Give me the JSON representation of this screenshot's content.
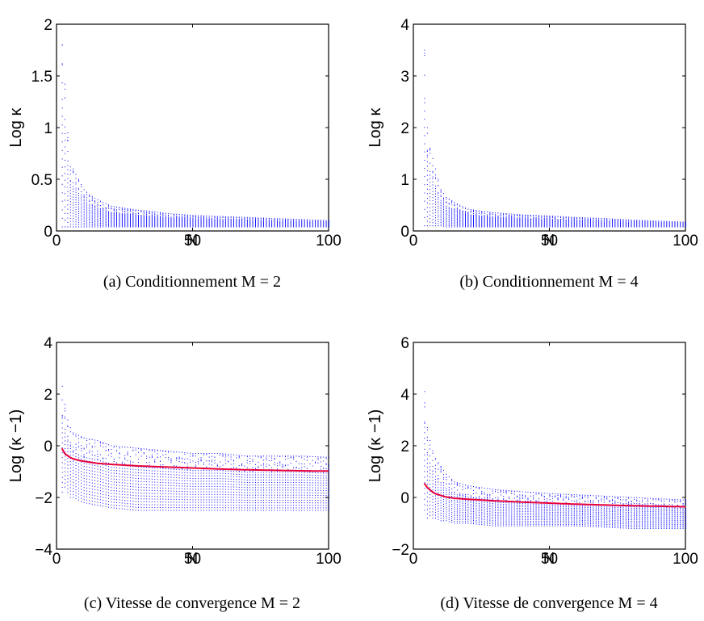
{
  "figure": {
    "panels": [
      {
        "caption": "(a)  Conditionnement M = 2",
        "chart_data": {
          "type": "scatter",
          "xlabel": "N",
          "ylabel": "Log κ",
          "xlim": [
            0,
            100
          ],
          "ylim": [
            0,
            2
          ],
          "xticks": [
            0,
            50,
            100
          ],
          "yticks": [
            0,
            0.5,
            1,
            1.5,
            2
          ],
          "xtick_labels": [
            "0",
            "50",
            "100"
          ],
          "ytick_labels": [
            "0",
            "0.5",
            "1",
            "1.5",
            "2"
          ],
          "grid": false,
          "points_color": "#0000ff",
          "series": [
            {
              "x": [
                2,
                3,
                4,
                5,
                6,
                7,
                8,
                10,
                12,
                15,
                20,
                25,
                30,
                35,
                40,
                50,
                60,
                70,
                80,
                90,
                100
              ],
              "min": [
                0.04,
                0.04,
                0.04,
                0.04,
                0.04,
                0.04,
                0.04,
                0.04,
                0.04,
                0.04,
                0.04,
                0.04,
                0.04,
                0.04,
                0.04,
                0.04,
                0.04,
                0.04,
                0.04,
                0.04,
                0.04
              ],
              "max": [
                1.8,
                1.42,
                0.95,
                0.62,
                0.6,
                0.55,
                0.5,
                0.4,
                0.35,
                0.3,
                0.24,
                0.22,
                0.2,
                0.19,
                0.17,
                0.15,
                0.14,
                0.13,
                0.12,
                0.11,
                0.1
              ]
            }
          ]
        }
      },
      {
        "caption": "(b)  Conditionnement M = 4",
        "chart_data": {
          "type": "scatter",
          "xlabel": "N",
          "ylabel": "Log κ",
          "xlim": [
            0,
            100
          ],
          "ylim": [
            0,
            4
          ],
          "xticks": [
            0,
            50,
            100
          ],
          "yticks": [
            0,
            1,
            2,
            3,
            4
          ],
          "xtick_labels": [
            "0",
            "50",
            "100"
          ],
          "ytick_labels": [
            "0",
            "1",
            "2",
            "3",
            "4"
          ],
          "grid": false,
          "points_color": "#0000ff",
          "series": [
            {
              "x": [
                4,
                5,
                6,
                7,
                8,
                10,
                12,
                15,
                20,
                25,
                30,
                35,
                40,
                50,
                60,
                70,
                80,
                90,
                100
              ],
              "min": [
                0.1,
                0.1,
                0.1,
                0.1,
                0.1,
                0.1,
                0.08,
                0.08,
                0.08,
                0.08,
                0.08,
                0.08,
                0.08,
                0.08,
                0.08,
                0.08,
                0.08,
                0.08,
                0.08
              ],
              "max": [
                3.5,
                2.0,
                1.6,
                1.4,
                1.2,
                0.8,
                0.65,
                0.55,
                0.42,
                0.38,
                0.35,
                0.33,
                0.31,
                0.29,
                0.26,
                0.24,
                0.21,
                0.19,
                0.17
              ]
            }
          ]
        }
      },
      {
        "caption": "(c)  Vitesse de convergence M = 2",
        "chart_data": {
          "type": "scatter",
          "xlabel": "N",
          "ylabel": "Log (κ −1)",
          "xlim": [
            0,
            100
          ],
          "ylim": [
            -4,
            4
          ],
          "xticks": [
            0,
            50,
            100
          ],
          "yticks": [
            -4,
            -2,
            0,
            2,
            4
          ],
          "xtick_labels": [
            "0",
            "50",
            "100"
          ],
          "ytick_labels": [
            "−4",
            "−2",
            "0",
            "2",
            "4"
          ],
          "grid": false,
          "points_color": "#0000ff",
          "fit_color": "#e8003a",
          "series": [
            {
              "x": [
                2,
                3,
                4,
                5,
                6,
                8,
                10,
                15,
                20,
                30,
                40,
                50,
                60,
                70,
                80,
                90,
                100
              ],
              "min": [
                -1.8,
                -1.6,
                -1.8,
                -2.0,
                -2.0,
                -2.1,
                -2.2,
                -2.3,
                -2.4,
                -2.5,
                -2.5,
                -2.5,
                -2.5,
                -2.5,
                -2.5,
                -2.5,
                -2.5
              ],
              "max": [
                2.3,
                1.6,
                1.0,
                0.7,
                0.5,
                0.4,
                0.3,
                0.2,
                0.0,
                -0.1,
                -0.2,
                -0.3,
                -0.3,
                -0.4,
                -0.4,
                -0.4,
                -0.45
              ],
              "fit": [
                -0.1,
                -0.3,
                -0.38,
                -0.45,
                -0.5,
                -0.56,
                -0.6,
                -0.68,
                -0.72,
                -0.78,
                -0.82,
                -0.86,
                -0.9,
                -0.93,
                -0.95,
                -0.97,
                -0.98
              ]
            }
          ]
        }
      },
      {
        "caption": "(d)  Vitesse de convergence M = 4",
        "chart_data": {
          "type": "scatter",
          "xlabel": "N",
          "ylabel": "Log (κ −1)",
          "xlim": [
            0,
            100
          ],
          "ylim": [
            -2,
            6
          ],
          "xticks": [
            0,
            50,
            100
          ],
          "yticks": [
            -2,
            0,
            2,
            4,
            6
          ],
          "xtick_labels": [
            "0",
            "50",
            "100"
          ],
          "ytick_labels": [
            "−2",
            "0",
            "2",
            "4",
            "6"
          ],
          "grid": false,
          "points_color": "#0000ff",
          "fit_color": "#e8003a",
          "series": [
            {
              "x": [
                4,
                5,
                6,
                7,
                8,
                10,
                12,
                15,
                20,
                30,
                40,
                50,
                60,
                70,
                80,
                90,
                100
              ],
              "min": [
                -0.5,
                -0.8,
                -0.7,
                -0.8,
                -0.8,
                -0.9,
                -0.9,
                -1.0,
                -1.0,
                -1.1,
                -1.1,
                -1.1,
                -1.1,
                -1.15,
                -1.2,
                -1.2,
                -1.2
              ],
              "max": [
                4.1,
                2.7,
                2.2,
                1.8,
                1.5,
                1.2,
                0.9,
                0.6,
                0.45,
                0.3,
                0.22,
                0.15,
                0.1,
                0.05,
                0.0,
                -0.05,
                -0.1
              ],
              "fit": [
                0.55,
                0.4,
                0.3,
                0.22,
                0.15,
                0.08,
                0.02,
                -0.03,
                -0.07,
                -0.13,
                -0.18,
                -0.22,
                -0.26,
                -0.29,
                -0.32,
                -0.34,
                -0.36
              ]
            }
          ]
        }
      }
    ]
  }
}
